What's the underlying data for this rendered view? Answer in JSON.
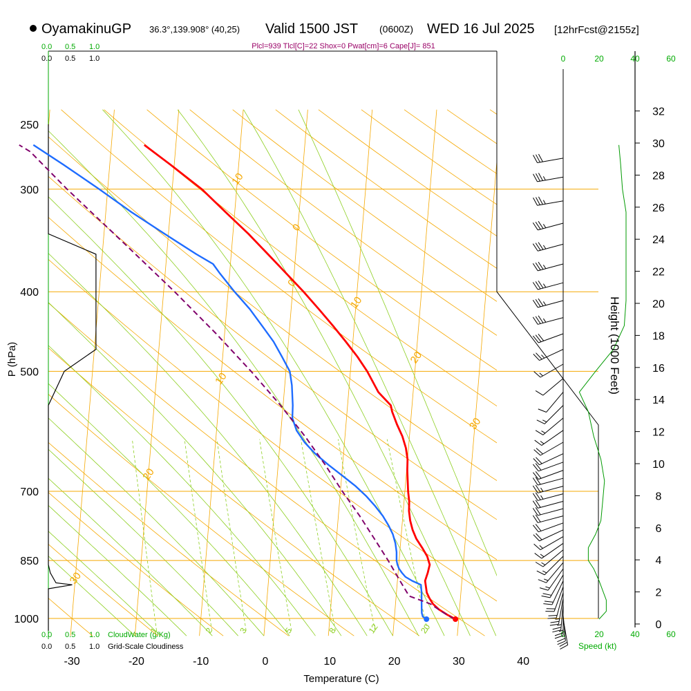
{
  "header": {
    "station": "OyamakinuGP",
    "coords": "36.3°,139.908° (40,25)",
    "valid": "Valid 1500 JST",
    "zulu": "(0600Z)",
    "date": "WED 16 Jul 2025",
    "fcst": "[12hrFcst@2155z]",
    "indices": "Plcl=939 Tlcl[C]=22 Shox=0 Pwat[cm]=6 Cape[J]= 851"
  },
  "colors": {
    "isotherm": "#f5a800",
    "dry_adiabat": "#f5a800",
    "moist_adiabat": "#8ccf1f",
    "mixing_ratio": "#8ccf1f",
    "temperature": "#ff0000",
    "dewpoint": "#1e6cff",
    "parcel": "#80006b",
    "cloud": "#000000",
    "wind_speed": "#009900",
    "label_green": "#00aa00",
    "indices": "#990066"
  },
  "chart_data": {
    "type": "line",
    "title": "OyamakinuGP Valid 1500 JST (0600Z) WED 16 Jul 2025 [12hrFcst@2155z]",
    "xlabel": "Temperature (C)",
    "ylabel": "P (hPa)",
    "y2label": "Height (1000 Feet)",
    "xlim": [
      -33,
      46
    ],
    "ylim": [
      1035,
      250
    ],
    "skew": "skew-T log-P",
    "x_ticks": [
      -30,
      -20,
      -10,
      0,
      10,
      20,
      30,
      40
    ],
    "p_ticks": [
      250,
      300,
      400,
      500,
      700,
      850,
      1000
    ],
    "height_ticks": [
      0,
      2,
      4,
      6,
      8,
      10,
      12,
      14,
      16,
      18,
      20,
      22,
      24,
      26,
      28,
      30,
      32
    ],
    "isotherm_labels": [
      {
        "text": "10",
        "t": -10,
        "p": 297
      },
      {
        "text": "0",
        "t": 0,
        "p": 338
      },
      {
        "text": "10",
        "t": 10,
        "p": 420
      },
      {
        "text": "20",
        "t": 20,
        "p": 490
      },
      {
        "text": "30",
        "t": 30,
        "p": 590
      },
      {
        "text": "0",
        "t": 0,
        "p": 395
      },
      {
        "text": "10",
        "t": -10,
        "p": 520
      },
      {
        "text": "20",
        "t": -20,
        "p": 680
      },
      {
        "text": "30",
        "t": -30,
        "p": 910
      }
    ],
    "mixing_ratio_labels": [
      "1",
      "2",
      "3",
      "5",
      "8",
      "12",
      "20"
    ],
    "mixing_ratio_values": [
      1,
      2,
      3,
      5,
      8,
      12,
      20
    ],
    "series": [
      {
        "name": "Temperature",
        "p": [
          1002,
          990,
          975,
          960,
          945,
          930,
          900,
          880,
          860,
          840,
          820,
          800,
          780,
          760,
          740,
          720,
          700,
          680,
          660,
          640,
          620,
          600,
          580,
          560,
          550,
          530,
          500,
          480,
          460,
          440,
          420,
          400,
          380,
          360,
          340,
          320,
          300,
          280,
          265
        ],
        "t": [
          29.5,
          28.2,
          26.8,
          25.8,
          25.2,
          24.7,
          24.3,
          24.6,
          24.8,
          24.3,
          23.4,
          22.4,
          21.7,
          21.2,
          20.9,
          20.8,
          20.5,
          20.3,
          20.1,
          20.0,
          19.6,
          18.9,
          17.9,
          17.0,
          16.7,
          14.6,
          12.6,
          10.9,
          8.9,
          6.7,
          4.3,
          1.7,
          -1.2,
          -4.3,
          -7.6,
          -11.4,
          -15.4,
          -20.6,
          -24.9
        ]
      },
      {
        "name": "Dew Point",
        "p": [
          1002,
          995,
          985,
          970,
          950,
          930,
          910,
          900,
          890,
          880,
          870,
          860,
          850,
          830,
          810,
          790,
          770,
          750,
          730,
          710,
          690,
          670,
          650,
          630,
          610,
          590,
          570,
          550,
          520,
          500,
          480,
          460,
          440,
          420,
          400,
          380,
          370,
          360,
          340,
          320,
          300,
          280,
          265
        ],
        "t": [
          25.0,
          24.4,
          24.2,
          24.1,
          24.0,
          23.9,
          23.7,
          22.3,
          21.2,
          20.6,
          20.1,
          19.8,
          19.6,
          19.5,
          19.2,
          18.7,
          17.9,
          16.9,
          15.6,
          14.1,
          12.3,
          10.1,
          7.8,
          5.6,
          3.8,
          2.4,
          1.6,
          1.5,
          1.1,
          0.6,
          -0.8,
          -2.3,
          -4.3,
          -6.4,
          -9.0,
          -11.5,
          -12.7,
          -15.4,
          -20.6,
          -26.0,
          -31.3,
          -37.2,
          -42.1
        ]
      },
      {
        "name": "Parcel",
        "p": [
          1002,
          980,
          960,
          939,
          900,
          850,
          800,
          750,
          700,
          650,
          600,
          550,
          500,
          450,
          400,
          350,
          300,
          270,
          265
        ],
        "t": [
          29.3,
          27.2,
          25.4,
          22.0,
          20.4,
          18.3,
          15.9,
          13.3,
          10.3,
          7.3,
          3.8,
          -0.4,
          -5.4,
          -11.3,
          -18.3,
          -26.6,
          -36.3,
          -42.5,
          -44.3
        ]
      }
    ],
    "cloudwater_axis": [
      "0.0",
      "0.5",
      "1.0"
    ],
    "cloudiness_axis": [
      "0.0",
      "0.5",
      "1.0"
    ],
    "cloudwater_label": "CloudWater (g/Kg)",
    "cloudiness_label": "Grid-Scale Cloudiness",
    "cloudiness_profile": {
      "p": [
        1035,
        1000,
        920,
        910,
        905,
        880,
        860,
        850,
        800,
        700,
        600,
        550,
        500,
        470,
        400,
        380,
        360,
        340,
        320,
        300,
        250
      ],
      "frac": [
        0,
        0,
        0.0,
        0.25,
        0.08,
        0.02,
        0,
        0,
        0,
        0,
        0,
        0,
        0.1,
        0.3,
        0.3,
        0.3,
        0.3,
        0,
        0,
        0,
        0
      ]
    },
    "wind_speed_axis": [
      "0",
      "20",
      "40",
      "60"
    ],
    "wind_speed_label": "Speed (kt)",
    "wind_speed_profile": {
      "p": [
        1002,
        980,
        950,
        900,
        870,
        850,
        820,
        790,
        760,
        720,
        680,
        640,
        600,
        560,
        530,
        500,
        470,
        440,
        410,
        380,
        350,
        320,
        300,
        280,
        265
      ],
      "kt": [
        20,
        24,
        24,
        20,
        17,
        14,
        14,
        18,
        21,
        22,
        23,
        21,
        17,
        14,
        9,
        18,
        28,
        34,
        35,
        35,
        35,
        35,
        33,
        32,
        31
      ]
    },
    "wind_barbs": {
      "p": [
        1002,
        990,
        975,
        960,
        945,
        930,
        915,
        900,
        885,
        870,
        855,
        840,
        825,
        810,
        795,
        780,
        765,
        750,
        735,
        720,
        705,
        690,
        675,
        660,
        645,
        630,
        610,
        590,
        570,
        550,
        530,
        510,
        490,
        470,
        450,
        430,
        410,
        390,
        370,
        350,
        330,
        310,
        290,
        275
      ],
      "spd": [
        20,
        22,
        24,
        24,
        23,
        22,
        20,
        19,
        18,
        17,
        15,
        14,
        14,
        15,
        17,
        19,
        20,
        21,
        22,
        22,
        23,
        23,
        22,
        22,
        21,
        20,
        18,
        16,
        15,
        14,
        10,
        9,
        17,
        25,
        30,
        33,
        35,
        35,
        35,
        35,
        35,
        34,
        33,
        32
      ],
      "dir": [
        170,
        175,
        180,
        185,
        190,
        195,
        200,
        205,
        210,
        215,
        220,
        225,
        230,
        235,
        240,
        245,
        250,
        255,
        255,
        255,
        255,
        255,
        255,
        250,
        250,
        245,
        240,
        235,
        230,
        225,
        220,
        230,
        240,
        245,
        250,
        255,
        255,
        255,
        255,
        255,
        255,
        260,
        260,
        260
      ]
    },
    "surface": {
      "t": 29.5,
      "td": 25.0,
      "p": 1002
    }
  }
}
